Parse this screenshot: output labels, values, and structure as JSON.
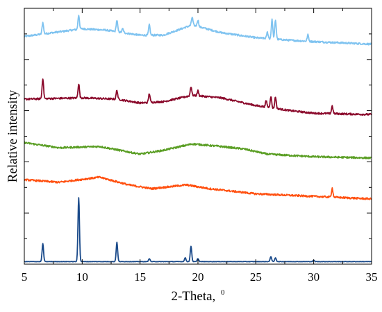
{
  "chart_data": {
    "type": "line",
    "title": "",
    "xlabel": "2-Theta,",
    "xlabel_superscript": "0",
    "ylabel": "Relative intensity",
    "xlim": [
      5,
      35
    ],
    "ylim": [
      0,
      10
    ],
    "x_ticks": [
      "5",
      "10",
      "15",
      "20",
      "25",
      "30",
      "35"
    ],
    "grid": false,
    "legend": "none",
    "series": [
      {
        "color": "#7fc3f0",
        "baseline": [
          [
            5,
            8.9
          ],
          [
            10,
            9.2
          ],
          [
            12,
            9.15
          ],
          [
            15,
            8.95
          ],
          [
            17,
            8.95
          ],
          [
            19.5,
            9.35
          ],
          [
            22,
            9.05
          ],
          [
            25,
            8.85
          ],
          [
            28,
            8.75
          ],
          [
            30,
            8.7
          ],
          [
            35,
            8.6
          ]
        ],
        "peaks": [
          [
            6.6,
            0.45
          ],
          [
            9.7,
            0.55
          ],
          [
            13.0,
            0.45
          ],
          [
            13.5,
            0.15
          ],
          [
            15.8,
            0.4
          ],
          [
            19.5,
            0.3
          ],
          [
            20.0,
            0.25
          ],
          [
            26.0,
            0.25
          ],
          [
            26.4,
            0.75
          ],
          [
            26.7,
            0.75
          ],
          [
            29.5,
            0.25
          ]
        ]
      },
      {
        "color": "#8b0a2c",
        "baseline": [
          [
            5,
            6.45
          ],
          [
            10,
            6.5
          ],
          [
            13,
            6.45
          ],
          [
            15,
            6.3
          ],
          [
            17,
            6.35
          ],
          [
            19.5,
            6.6
          ],
          [
            22,
            6.5
          ],
          [
            25,
            6.2
          ],
          [
            28,
            6.0
          ],
          [
            30,
            5.9
          ],
          [
            35,
            5.85
          ]
        ],
        "peaks": [
          [
            6.6,
            0.8
          ],
          [
            9.7,
            0.55
          ],
          [
            13.0,
            0.35
          ],
          [
            15.8,
            0.35
          ],
          [
            19.4,
            0.35
          ],
          [
            20.0,
            0.2
          ],
          [
            25.9,
            0.25
          ],
          [
            26.3,
            0.45
          ],
          [
            26.7,
            0.45
          ],
          [
            31.6,
            0.3
          ]
        ]
      },
      {
        "color": "#5a9e24",
        "baseline": [
          [
            5,
            4.75
          ],
          [
            8,
            4.55
          ],
          [
            11.5,
            4.6
          ],
          [
            15,
            4.3
          ],
          [
            17,
            4.45
          ],
          [
            19.5,
            4.7
          ],
          [
            22,
            4.6
          ],
          [
            24,
            4.5
          ],
          [
            26,
            4.3
          ],
          [
            30,
            4.2
          ],
          [
            35,
            4.15
          ]
        ],
        "peaks": []
      },
      {
        "color": "#ff5010",
        "baseline": [
          [
            5,
            3.3
          ],
          [
            8,
            3.2
          ],
          [
            11.5,
            3.4
          ],
          [
            14,
            3.1
          ],
          [
            16,
            2.95
          ],
          [
            19,
            3.1
          ],
          [
            21,
            2.95
          ],
          [
            25,
            2.75
          ],
          [
            30,
            2.65
          ],
          [
            35,
            2.55
          ]
        ],
        "peaks": [
          [
            31.6,
            0.35
          ]
        ]
      },
      {
        "color": "#1a4a8a",
        "baseline": [
          [
            5,
            0.1
          ],
          [
            35,
            0.1
          ]
        ],
        "peaks": [
          [
            6.6,
            0.7
          ],
          [
            9.7,
            2.5
          ],
          [
            13.0,
            0.75
          ],
          [
            15.8,
            0.12
          ],
          [
            18.9,
            0.15
          ],
          [
            19.4,
            0.6
          ],
          [
            20.0,
            0.12
          ],
          [
            26.3,
            0.2
          ],
          [
            26.7,
            0.15
          ],
          [
            30.0,
            0.05
          ]
        ]
      }
    ]
  }
}
